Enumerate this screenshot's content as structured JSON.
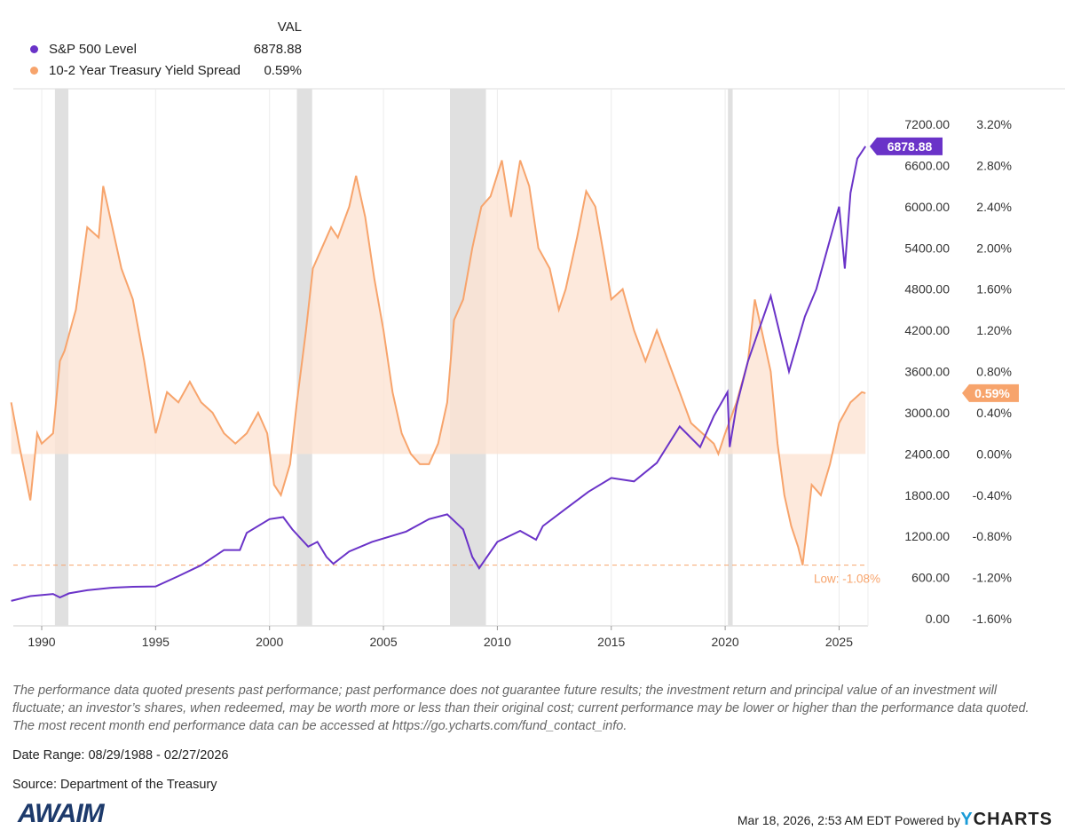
{
  "legend": {
    "header": "VAL",
    "items": [
      {
        "name": "S&P 500 Level",
        "value": "6878.88",
        "color": "#6a33c8"
      },
      {
        "name": "10-2 Year Treasury Yield Spread",
        "value": "0.59%",
        "color": "#f7a46c"
      }
    ]
  },
  "chart_data": {
    "type": "line",
    "x_ticks": [
      "1990",
      "1995",
      "2000",
      "2005",
      "2010",
      "2015",
      "2020",
      "2025"
    ],
    "xlim": [
      "08/29/1988",
      "02/27/2026"
    ],
    "y_left_ticks": [],
    "y_sp_ticks": [
      "7200.00",
      "6600.00",
      "6000.00",
      "5400.00",
      "4800.00",
      "4200.00",
      "3600.00",
      "3000.00",
      "2400.00",
      "1800.00",
      "1200.00",
      "600.00",
      "0.00"
    ],
    "y_sp_range": [
      0,
      7200
    ],
    "y_spread_ticks": [
      "3.20%",
      "2.80%",
      "2.40%",
      "2.00%",
      "1.60%",
      "1.20%",
      "0.80%",
      "0.40%",
      "0.00%",
      "-0.40%",
      "-0.80%",
      "-1.20%",
      "-1.60%"
    ],
    "y_spread_range": [
      -1.6,
      3.2
    ],
    "grid": "vertical",
    "recessions": [
      [
        1990.58,
        1991.17
      ],
      [
        2001.2,
        2001.87
      ],
      [
        2007.92,
        2009.5
      ],
      [
        2020.12,
        2020.33
      ]
    ],
    "series": [
      {
        "name": "S&P 500 Level",
        "axis": "left",
        "color": "#6a33c8",
        "last_label": "6878.88",
        "points": [
          [
            1988.66,
            260
          ],
          [
            1989.5,
            330
          ],
          [
            1990.5,
            360
          ],
          [
            1990.8,
            310
          ],
          [
            1991.2,
            370
          ],
          [
            1992,
            415
          ],
          [
            1993,
            450
          ],
          [
            1994,
            465
          ],
          [
            1995,
            470
          ],
          [
            1996,
            620
          ],
          [
            1997,
            780
          ],
          [
            1998,
            1000
          ],
          [
            1998.7,
            1000
          ],
          [
            1999,
            1250
          ],
          [
            2000,
            1450
          ],
          [
            2000.6,
            1480
          ],
          [
            2001,
            1300
          ],
          [
            2001.7,
            1050
          ],
          [
            2002.1,
            1120
          ],
          [
            2002.5,
            900
          ],
          [
            2002.8,
            800
          ],
          [
            2003.5,
            980
          ],
          [
            2004.5,
            1120
          ],
          [
            2006,
            1270
          ],
          [
            2007,
            1450
          ],
          [
            2007.8,
            1520
          ],
          [
            2008.5,
            1300
          ],
          [
            2008.9,
            900
          ],
          [
            2009.2,
            735
          ],
          [
            2010,
            1120
          ],
          [
            2011,
            1280
          ],
          [
            2011.7,
            1150
          ],
          [
            2012,
            1350
          ],
          [
            2013,
            1600
          ],
          [
            2014,
            1850
          ],
          [
            2015,
            2050
          ],
          [
            2016,
            2000
          ],
          [
            2017,
            2270
          ],
          [
            2018,
            2800
          ],
          [
            2018.9,
            2500
          ],
          [
            2019.5,
            2950
          ],
          [
            2020.1,
            3300
          ],
          [
            2020.2,
            2500
          ],
          [
            2020.5,
            3100
          ],
          [
            2021,
            3750
          ],
          [
            2022,
            4700
          ],
          [
            2022.8,
            3600
          ],
          [
            2023.5,
            4400
          ],
          [
            2024,
            4800
          ],
          [
            2024.5,
            5400
          ],
          [
            2025,
            6000
          ],
          [
            2025.25,
            5100
          ],
          [
            2025.5,
            6200
          ],
          [
            2025.8,
            6700
          ],
          [
            2026.16,
            6878.88
          ]
        ]
      },
      {
        "name": "10-2 Year Treasury Yield Spread",
        "axis": "right",
        "color": "#f7a46c",
        "last_label": "0.59%",
        "points": [
          [
            1988.66,
            0.5
          ],
          [
            1989,
            0.1
          ],
          [
            1989.5,
            -0.45
          ],
          [
            1989.8,
            0.2
          ],
          [
            1990,
            0.1
          ],
          [
            1990.5,
            0.2
          ],
          [
            1990.8,
            0.9
          ],
          [
            1991,
            1.0
          ],
          [
            1991.5,
            1.4
          ],
          [
            1992,
            2.2
          ],
          [
            1992.5,
            2.1
          ],
          [
            1992.7,
            2.6
          ],
          [
            1993,
            2.3
          ],
          [
            1993.5,
            1.8
          ],
          [
            1994,
            1.5
          ],
          [
            1994.5,
            0.9
          ],
          [
            1995,
            0.2
          ],
          [
            1995.5,
            0.6
          ],
          [
            1996,
            0.5
          ],
          [
            1996.5,
            0.7
          ],
          [
            1997,
            0.5
          ],
          [
            1997.5,
            0.4
          ],
          [
            1998,
            0.2
          ],
          [
            1998.5,
            0.1
          ],
          [
            1999,
            0.2
          ],
          [
            1999.5,
            0.4
          ],
          [
            1999.9,
            0.2
          ],
          [
            2000.2,
            -0.3
          ],
          [
            2000.5,
            -0.4
          ],
          [
            2000.9,
            -0.1
          ],
          [
            2001.2,
            0.5
          ],
          [
            2001.6,
            1.2
          ],
          [
            2001.9,
            1.8
          ],
          [
            2002.3,
            2.0
          ],
          [
            2002.7,
            2.2
          ],
          [
            2003,
            2.1
          ],
          [
            2003.5,
            2.4
          ],
          [
            2003.8,
            2.7
          ],
          [
            2004.2,
            2.3
          ],
          [
            2004.6,
            1.7
          ],
          [
            2005,
            1.2
          ],
          [
            2005.4,
            0.6
          ],
          [
            2005.8,
            0.2
          ],
          [
            2006.2,
            0.0
          ],
          [
            2006.6,
            -0.1
          ],
          [
            2007,
            -0.1
          ],
          [
            2007.4,
            0.1
          ],
          [
            2007.8,
            0.5
          ],
          [
            2008.1,
            1.3
          ],
          [
            2008.5,
            1.5
          ],
          [
            2008.9,
            2.0
          ],
          [
            2009.3,
            2.4
          ],
          [
            2009.7,
            2.5
          ],
          [
            2010.2,
            2.85
          ],
          [
            2010.6,
            2.3
          ],
          [
            2011,
            2.85
          ],
          [
            2011.4,
            2.6
          ],
          [
            2011.8,
            2.0
          ],
          [
            2012.3,
            1.8
          ],
          [
            2012.7,
            1.4
          ],
          [
            2013,
            1.6
          ],
          [
            2013.5,
            2.1
          ],
          [
            2013.9,
            2.55
          ],
          [
            2014.3,
            2.4
          ],
          [
            2014.7,
            1.9
          ],
          [
            2015,
            1.5
          ],
          [
            2015.5,
            1.6
          ],
          [
            2016,
            1.2
          ],
          [
            2016.5,
            0.9
          ],
          [
            2017,
            1.2
          ],
          [
            2017.5,
            0.9
          ],
          [
            2018,
            0.6
          ],
          [
            2018.5,
            0.3
          ],
          [
            2019,
            0.2
          ],
          [
            2019.5,
            0.1
          ],
          [
            2019.7,
            0.0
          ],
          [
            2020,
            0.2
          ],
          [
            2020.5,
            0.5
          ],
          [
            2021,
            0.9
          ],
          [
            2021.3,
            1.5
          ],
          [
            2021.6,
            1.2
          ],
          [
            2022,
            0.8
          ],
          [
            2022.3,
            0.1
          ],
          [
            2022.6,
            -0.4
          ],
          [
            2022.9,
            -0.7
          ],
          [
            2023.2,
            -0.9
          ],
          [
            2023.4,
            -1.08
          ],
          [
            2023.8,
            -0.3
          ],
          [
            2024.2,
            -0.4
          ],
          [
            2024.6,
            -0.1
          ],
          [
            2025,
            0.3
          ],
          [
            2025.5,
            0.5
          ],
          [
            2026,
            0.6
          ],
          [
            2026.16,
            0.59
          ]
        ]
      }
    ],
    "annotations": [
      {
        "text": "Low: -1.08%",
        "value": -1.08,
        "axis": "right"
      }
    ]
  },
  "footer": {
    "disclaimer": "The performance data quoted presents past performance; past performance does not guarantee future results; the investment return and principal value of an investment will fluctuate; an investor’s shares, when redeemed, may be worth more or less than their original cost; current performance may be lower or higher than the performance data quoted. The most recent month end performance data can be accessed at https://go.ycharts.com/fund_contact_info.",
    "date_range": "Date Range: 08/29/1988 - 02/27/2026",
    "source": "Source: Department of the Treasury",
    "logo": "AWAIM",
    "timestamp": "Mar 18, 2026, 2:53 AM EDT Powered by",
    "brand_y": "Y",
    "brand_rest": "CHARTS"
  }
}
